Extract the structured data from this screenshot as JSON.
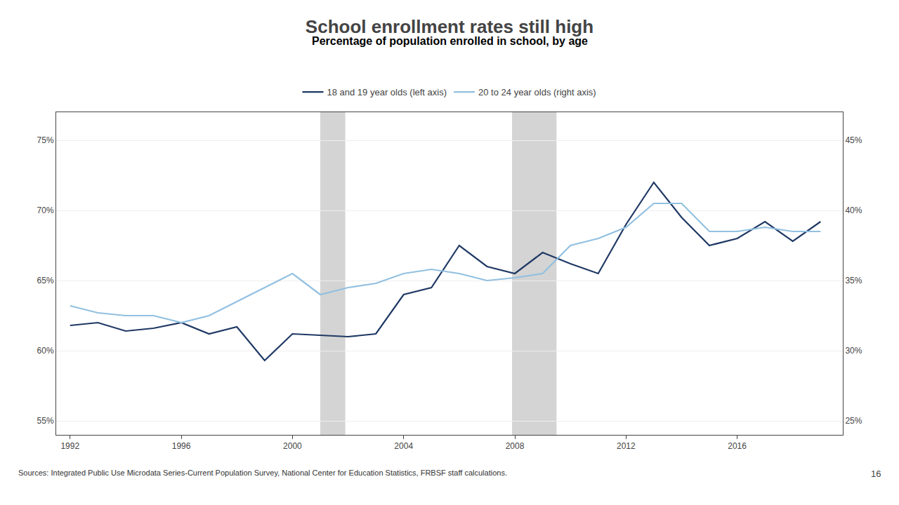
{
  "chart_data": {
    "type": "line",
    "title": "School enrollment rates still high",
    "subtitle": "Percentage of population enrolled in school, by age",
    "footnote": "Sources: Integrated Public Use Microdata Series-Current Population Survey, National Center for Education Statistics, FRBSF staff calculations.",
    "slide_number": "16",
    "x": [
      1992,
      1993,
      1994,
      1995,
      1996,
      1997,
      1998,
      1999,
      2000,
      2001,
      2002,
      2003,
      2004,
      2005,
      2006,
      2007,
      2008,
      2009,
      2010,
      2011,
      2012,
      2013,
      2014,
      2015,
      2016,
      2017,
      2018,
      2019
    ],
    "series": [
      {
        "name": "18 and 19 year olds (left axis)",
        "color": "#1f3864",
        "axis": "y",
        "values": [
          61.8,
          62.0,
          61.4,
          61.6,
          62.0,
          61.2,
          61.7,
          59.3,
          61.2,
          61.1,
          61.0,
          61.2,
          64.0,
          64.5,
          67.5,
          66.0,
          65.5,
          67.0,
          66.2,
          65.5,
          69.0,
          72.0,
          69.5,
          67.5,
          68.0,
          69.2,
          67.8,
          69.2
        ]
      },
      {
        "name": "20 to 24 year olds (right axis)",
        "color": "#92c0e0",
        "axis": "y2",
        "values": [
          33.2,
          32.7,
          32.5,
          32.5,
          32.0,
          32.5,
          33.5,
          34.5,
          35.5,
          34.0,
          34.5,
          34.8,
          35.5,
          35.8,
          35.5,
          35.0,
          35.2,
          35.5,
          37.5,
          38.0,
          38.8,
          40.5,
          40.5,
          38.5,
          38.5,
          38.8,
          38.5,
          38.5
        ]
      }
    ],
    "recession_bands": {
      "ranges": [
        [
          2001.0,
          2001.9
        ],
        [
          2007.9,
          2009.5
        ]
      ],
      "color": "#b8b8b8"
    },
    "xlim": [
      1991.5,
      2019.8
    ],
    "xticks": [
      1992,
      1996,
      2000,
      2004,
      2008,
      2012,
      2016
    ],
    "ylim": [
      54,
      77
    ],
    "yticks": [
      {
        "value": 55,
        "label": "55%"
      },
      {
        "value": 60,
        "label": "60%"
      },
      {
        "value": 65,
        "label": "65%"
      },
      {
        "value": 70,
        "label": "70%"
      },
      {
        "value": 75,
        "label": "75%"
      }
    ],
    "y2lim": [
      24,
      47
    ],
    "y2ticks": [
      {
        "value": 25,
        "label": "25%"
      },
      {
        "value": 30,
        "label": "30%"
      },
      {
        "value": 35,
        "label": "35%"
      },
      {
        "value": 40,
        "label": "40%"
      },
      {
        "value": 45,
        "label": "45%"
      }
    ],
    "grid": true,
    "legend": "top"
  }
}
